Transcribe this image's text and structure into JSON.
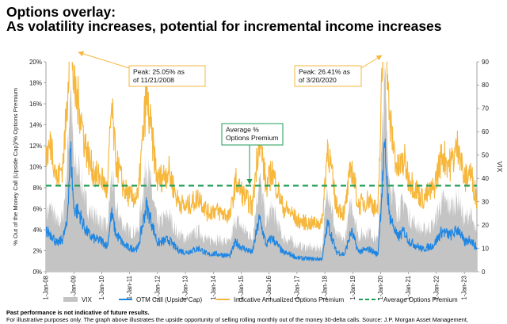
{
  "header": {
    "title_line1": "Options overlay:",
    "title_line2": "As volatility increases, potential for incremental income increases"
  },
  "footer": {
    "disclaimer_bold": "Past performance is not indicative of future results.",
    "disclaimer_text": "For illustrative purposes only. The graph above illustrates the upside opportunity of selling rolling monthly out of the money 30-delta calls. Source: J.P. Morgan Asset Management,"
  },
  "colors": {
    "vix": "#c4c4c4",
    "otm": "#1e86e3",
    "premium": "#f6b73c",
    "average": "#1f9e55",
    "annotation_border": "#f6b73c"
  },
  "chart_data": {
    "type": "line",
    "ylabel": "% Out of the Money Call (Upside Cap)/% Options Premium",
    "y2label": "VIX",
    "ylim": [
      0,
      20
    ],
    "y2lim": [
      0,
      90
    ],
    "yticks": [
      "0%",
      "2%",
      "4%",
      "6%",
      "8%",
      "10%",
      "12%",
      "14%",
      "16%",
      "18%",
      "20%"
    ],
    "y2ticks": [
      "0",
      "10",
      "20",
      "30",
      "40",
      "50",
      "60",
      "70",
      "80",
      "90"
    ],
    "xlim": [
      2008.0,
      2023.45
    ],
    "xticks": [
      {
        "x": 2008.0,
        "label": "1-Jan-08"
      },
      {
        "x": 2009.0,
        "label": "1-Jan-09"
      },
      {
        "x": 2010.0,
        "label": "1-Jan-10"
      },
      {
        "x": 2011.0,
        "label": "1-Jan-11"
      },
      {
        "x": 2012.0,
        "label": "1-Jan-12"
      },
      {
        "x": 2013.0,
        "label": "1-Jan-13"
      },
      {
        "x": 2014.0,
        "label": "1-Jan-14"
      },
      {
        "x": 2015.0,
        "label": "1-Jan-15"
      },
      {
        "x": 2016.0,
        "label": "1-Jan-16"
      },
      {
        "x": 2017.0,
        "label": "1-Jan-17"
      },
      {
        "x": 2018.0,
        "label": "1-Jan-18"
      },
      {
        "x": 2019.0,
        "label": "1-Jan-19"
      },
      {
        "x": 2020.0,
        "label": "1-Jan-20"
      },
      {
        "x": 2021.0,
        "label": "1-Jan-21"
      },
      {
        "x": 2022.0,
        "label": "1-Jan-22"
      },
      {
        "x": 2023.0,
        "label": "1-Jan-23"
      }
    ],
    "average_premium": 8.2,
    "series": [
      {
        "name": "VIX",
        "axis": "right",
        "style": "area",
        "points": [
          [
            2008.0,
            24
          ],
          [
            2008.2,
            27
          ],
          [
            2008.4,
            20
          ],
          [
            2008.6,
            23
          ],
          [
            2008.75,
            42
          ],
          [
            2008.88,
            80
          ],
          [
            2009.0,
            44
          ],
          [
            2009.2,
            43
          ],
          [
            2009.4,
            30
          ],
          [
            2009.6,
            25
          ],
          [
            2009.8,
            23
          ],
          [
            2010.0,
            21
          ],
          [
            2010.2,
            18
          ],
          [
            2010.35,
            41
          ],
          [
            2010.5,
            27
          ],
          [
            2010.8,
            19
          ],
          [
            2011.0,
            17
          ],
          [
            2011.3,
            17
          ],
          [
            2011.6,
            46
          ],
          [
            2011.8,
            33
          ],
          [
            2012.0,
            20
          ],
          [
            2012.4,
            24
          ],
          [
            2012.7,
            16
          ],
          [
            2013.0,
            14
          ],
          [
            2013.5,
            17
          ],
          [
            2013.8,
            13
          ],
          [
            2014.0,
            14
          ],
          [
            2014.3,
            13
          ],
          [
            2014.6,
            12
          ],
          [
            2014.8,
            22
          ],
          [
            2015.0,
            19
          ],
          [
            2015.4,
            14
          ],
          [
            2015.65,
            40
          ],
          [
            2015.9,
            20
          ],
          [
            2016.1,
            27
          ],
          [
            2016.5,
            14
          ],
          [
            2016.8,
            13
          ],
          [
            2017.0,
            11
          ],
          [
            2017.5,
            10
          ],
          [
            2017.9,
            10
          ],
          [
            2018.1,
            37
          ],
          [
            2018.4,
            15
          ],
          [
            2018.7,
            13
          ],
          [
            2018.95,
            30
          ],
          [
            2019.2,
            15
          ],
          [
            2019.6,
            17
          ],
          [
            2019.9,
            13
          ],
          [
            2020.15,
            82
          ],
          [
            2020.3,
            40
          ],
          [
            2020.6,
            25
          ],
          [
            2020.85,
            30
          ],
          [
            2021.0,
            23
          ],
          [
            2021.5,
            17
          ],
          [
            2021.9,
            20
          ],
          [
            2022.2,
            30
          ],
          [
            2022.5,
            27
          ],
          [
            2022.8,
            31
          ],
          [
            2023.0,
            21
          ],
          [
            2023.2,
            25
          ],
          [
            2023.45,
            14
          ]
        ]
      },
      {
        "name": "OTM Call (Upside Cap)",
        "axis": "left",
        "style": "line",
        "points": [
          [
            2008.0,
            3.8
          ],
          [
            2008.2,
            3.5
          ],
          [
            2008.4,
            2.6
          ],
          [
            2008.6,
            3.1
          ],
          [
            2008.75,
            4.4
          ],
          [
            2008.88,
            11.5
          ],
          [
            2009.0,
            6.0
          ],
          [
            2009.2,
            5.5
          ],
          [
            2009.4,
            4.0
          ],
          [
            2009.6,
            3.3
          ],
          [
            2009.8,
            3.0
          ],
          [
            2010.0,
            2.9
          ],
          [
            2010.2,
            2.4
          ],
          [
            2010.35,
            5.5
          ],
          [
            2010.5,
            3.6
          ],
          [
            2010.8,
            2.5
          ],
          [
            2011.0,
            2.2
          ],
          [
            2011.3,
            2.2
          ],
          [
            2011.6,
            6.2
          ],
          [
            2011.8,
            4.5
          ],
          [
            2012.0,
            2.7
          ],
          [
            2012.4,
            3.0
          ],
          [
            2012.7,
            2.1
          ],
          [
            2013.0,
            1.8
          ],
          [
            2013.5,
            2.2
          ],
          [
            2013.8,
            1.6
          ],
          [
            2014.0,
            1.7
          ],
          [
            2014.3,
            1.6
          ],
          [
            2014.6,
            1.5
          ],
          [
            2014.8,
            2.8
          ],
          [
            2015.0,
            2.3
          ],
          [
            2015.4,
            1.8
          ],
          [
            2015.65,
            5.0
          ],
          [
            2015.9,
            2.5
          ],
          [
            2016.1,
            3.2
          ],
          [
            2016.5,
            1.8
          ],
          [
            2016.8,
            1.6
          ],
          [
            2017.0,
            1.3
          ],
          [
            2017.5,
            1.2
          ],
          [
            2017.9,
            1.2
          ],
          [
            2018.1,
            4.6
          ],
          [
            2018.4,
            1.9
          ],
          [
            2018.7,
            1.6
          ],
          [
            2018.95,
            3.8
          ],
          [
            2019.2,
            1.9
          ],
          [
            2019.6,
            2.1
          ],
          [
            2019.9,
            1.6
          ],
          [
            2020.15,
            11.8
          ],
          [
            2020.3,
            5.5
          ],
          [
            2020.6,
            3.2
          ],
          [
            2020.85,
            3.8
          ],
          [
            2021.0,
            2.9
          ],
          [
            2021.5,
            2.1
          ],
          [
            2021.9,
            2.5
          ],
          [
            2022.2,
            3.8
          ],
          [
            2022.5,
            3.4
          ],
          [
            2022.8,
            4.0
          ],
          [
            2023.0,
            2.7
          ],
          [
            2023.2,
            3.1
          ],
          [
            2023.45,
            2.2
          ]
        ]
      },
      {
        "name": "Indicative Annualized Options Premium",
        "axis": "left",
        "style": "line",
        "points": [
          [
            2008.0,
            11.0
          ],
          [
            2008.2,
            12.0
          ],
          [
            2008.4,
            8.5
          ],
          [
            2008.6,
            10.0
          ],
          [
            2008.75,
            15.0
          ],
          [
            2008.88,
            25.05
          ],
          [
            2009.0,
            17.0
          ],
          [
            2009.2,
            15.5
          ],
          [
            2009.4,
            12.0
          ],
          [
            2009.6,
            10.0
          ],
          [
            2009.8,
            9.0
          ],
          [
            2010.0,
            8.8
          ],
          [
            2010.2,
            7.5
          ],
          [
            2010.35,
            15.5
          ],
          [
            2010.5,
            10.5
          ],
          [
            2010.8,
            7.8
          ],
          [
            2011.0,
            7.0
          ],
          [
            2011.3,
            7.0
          ],
          [
            2011.6,
            16.5
          ],
          [
            2011.8,
            12.5
          ],
          [
            2012.0,
            8.5
          ],
          [
            2012.4,
            9.5
          ],
          [
            2012.7,
            6.8
          ],
          [
            2013.0,
            6.0
          ],
          [
            2013.5,
            7.0
          ],
          [
            2013.8,
            5.5
          ],
          [
            2014.0,
            5.8
          ],
          [
            2014.3,
            5.5
          ],
          [
            2014.6,
            5.2
          ],
          [
            2014.8,
            8.5
          ],
          [
            2015.0,
            7.5
          ],
          [
            2015.4,
            6.0
          ],
          [
            2015.65,
            13.0
          ],
          [
            2015.9,
            7.8
          ],
          [
            2016.1,
            9.5
          ],
          [
            2016.5,
            6.0
          ],
          [
            2016.8,
            5.5
          ],
          [
            2017.0,
            4.8
          ],
          [
            2017.5,
            4.5
          ],
          [
            2017.9,
            4.6
          ],
          [
            2018.1,
            12.0
          ],
          [
            2018.4,
            6.2
          ],
          [
            2018.7,
            5.5
          ],
          [
            2018.95,
            10.0
          ],
          [
            2019.2,
            6.2
          ],
          [
            2019.6,
            6.8
          ],
          [
            2019.9,
            5.5
          ],
          [
            2020.15,
            26.41
          ],
          [
            2020.3,
            14.5
          ],
          [
            2020.6,
            9.5
          ],
          [
            2020.85,
            10.5
          ],
          [
            2021.0,
            8.8
          ],
          [
            2021.5,
            6.8
          ],
          [
            2021.9,
            7.8
          ],
          [
            2022.2,
            11.0
          ],
          [
            2022.5,
            10.0
          ],
          [
            2022.8,
            12.0
          ],
          [
            2023.0,
            8.5
          ],
          [
            2023.2,
            9.5
          ],
          [
            2023.45,
            6.8
          ]
        ]
      }
    ],
    "annotations": [
      {
        "text_line1": "Peak: 25.05% as",
        "text_line2": "of 11/21/2008",
        "x": 2008.88,
        "y": 25.05
      },
      {
        "text_line1": "Peak: 26.41% as",
        "text_line2": "of 3/20/2020",
        "x": 2020.15,
        "y": 26.41
      },
      {
        "text_line1": "Average %",
        "text_line2": "Options Premium",
        "x": 2015.4,
        "y": 8.2
      }
    ],
    "legend": [
      {
        "label": "VIX",
        "kind": "area"
      },
      {
        "label": "OTM Call (Upside Cap)",
        "kind": "line"
      },
      {
        "label": "Indicative Annualized Options Premium",
        "kind": "line"
      },
      {
        "label": "Average Options Premium",
        "kind": "dashed"
      }
    ]
  }
}
